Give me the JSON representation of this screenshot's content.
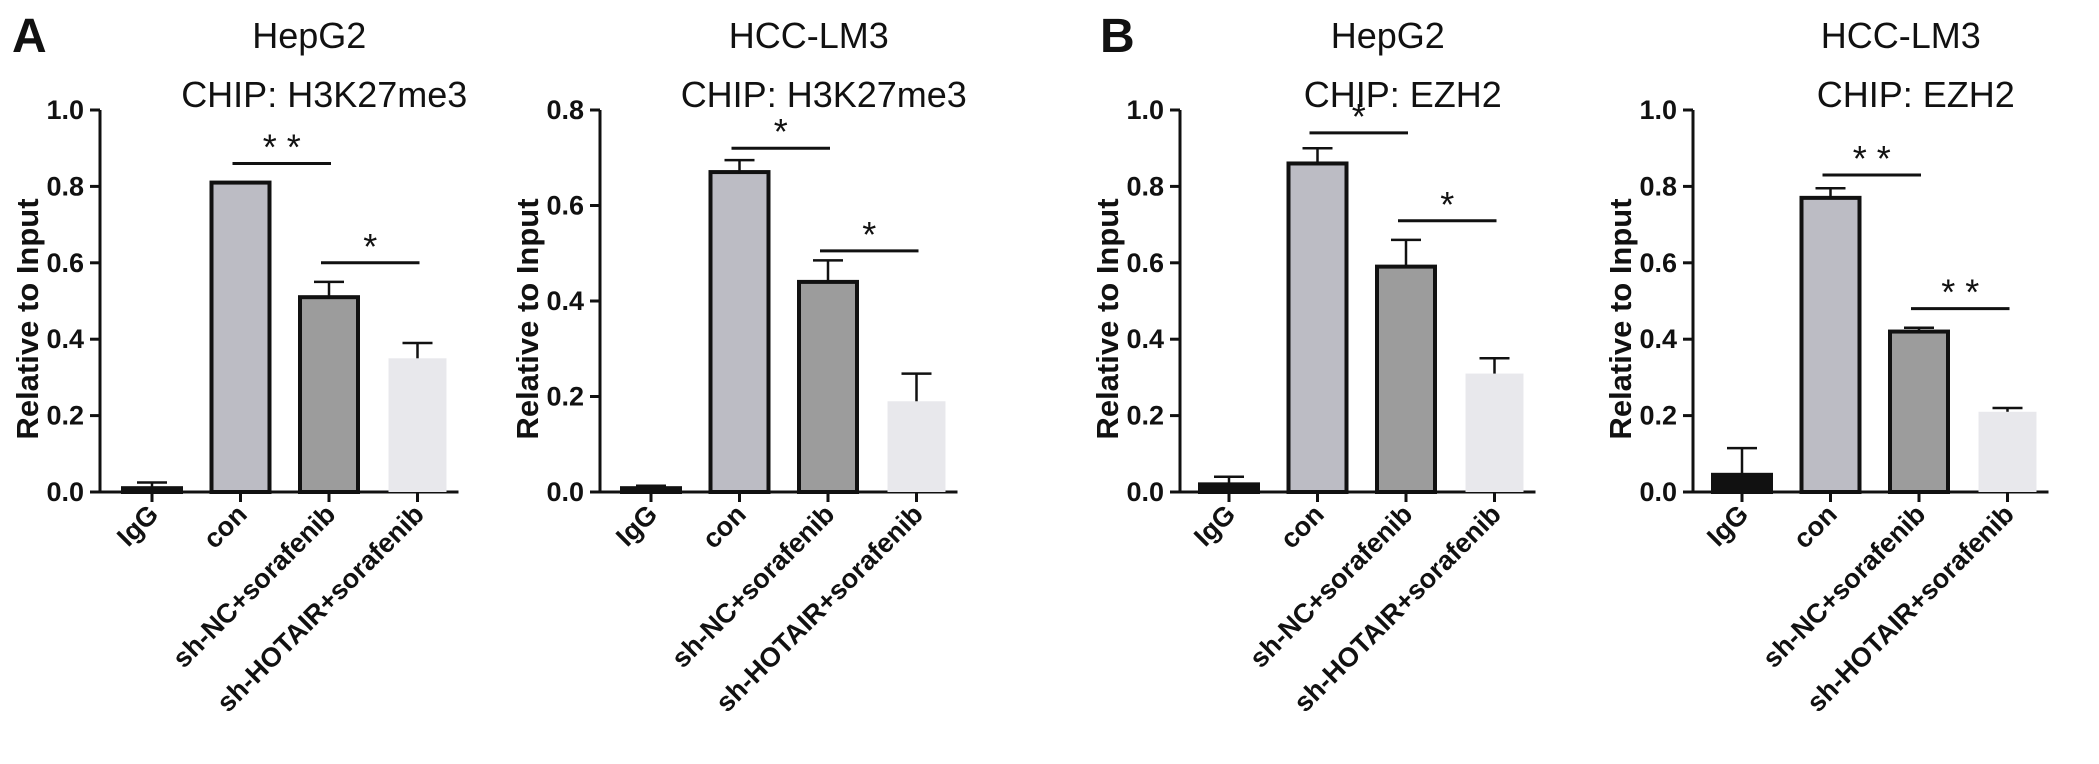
{
  "panels": [
    {
      "label": "A"
    },
    {
      "label": "B"
    }
  ],
  "chart_data": [
    {
      "type": "bar",
      "title": "HepG2",
      "subtitle": "CHIP: H3K27me3",
      "ylabel": "Relative to Input",
      "ylim": [
        0,
        1.0
      ],
      "yticks": [
        "0.0",
        "0.2",
        "0.4",
        "0.6",
        "0.8",
        "1.0"
      ],
      "categories": [
        "IgG",
        "con",
        "sh-NC+sorafenib",
        "sh-HOTAIR+sorafenib"
      ],
      "values": [
        0.01,
        0.81,
        0.51,
        0.35
      ],
      "errors": [
        0.015,
        0.0,
        0.04,
        0.04
      ],
      "colors": [
        "#111111",
        "#bcbcc4",
        "#9c9c9c",
        "#e8e8ec"
      ],
      "significance": [
        {
          "from": 1,
          "to": 2,
          "label": "* *",
          "y": 0.86
        },
        {
          "from": 2,
          "to": 3,
          "label": "*",
          "y": 0.6
        }
      ]
    },
    {
      "type": "bar",
      "title": "HCC-LM3",
      "subtitle": "CHIP: H3K27me3",
      "ylabel": "Relative to Input",
      "ylim": [
        0,
        0.8
      ],
      "yticks": [
        "0.0",
        "0.2",
        "0.4",
        "0.6",
        "0.8"
      ],
      "categories": [
        "IgG",
        "con",
        "sh-NC+sorafenib",
        "sh-HOTAIR+sorafenib"
      ],
      "values": [
        0.008,
        0.67,
        0.44,
        0.19
      ],
      "errors": [
        0.005,
        0.025,
        0.045,
        0.058
      ],
      "colors": [
        "#111111",
        "#bcbcc4",
        "#9c9c9c",
        "#e8e8ec"
      ],
      "significance": [
        {
          "from": 1,
          "to": 2,
          "label": "*",
          "y": 0.72
        },
        {
          "from": 2,
          "to": 3,
          "label": "*",
          "y": 0.505
        }
      ]
    },
    {
      "type": "bar",
      "title": "HepG2",
      "subtitle": "CHIP: EZH2",
      "ylabel": "Relative to Input",
      "ylim": [
        0,
        1.0
      ],
      "yticks": [
        "0.0",
        "0.2",
        "0.4",
        "0.6",
        "0.8",
        "1.0"
      ],
      "categories": [
        "IgG",
        "con",
        "sh-NC+sorafenib",
        "sh-HOTAIR+sorafenib"
      ],
      "values": [
        0.02,
        0.86,
        0.59,
        0.31
      ],
      "errors": [
        0.02,
        0.04,
        0.07,
        0.04
      ],
      "colors": [
        "#111111",
        "#bcbcc4",
        "#9c9c9c",
        "#e8e8ec"
      ],
      "significance": [
        {
          "from": 1,
          "to": 2,
          "label": "*",
          "y": 0.94
        },
        {
          "from": 2,
          "to": 3,
          "label": "*",
          "y": 0.71
        }
      ]
    },
    {
      "type": "bar",
      "title": "HCC-LM3",
      "subtitle": "CHIP: EZH2",
      "ylabel": "Relative to Input",
      "ylim": [
        0,
        1.0
      ],
      "yticks": [
        "0.0",
        "0.2",
        "0.4",
        "0.6",
        "0.8",
        "1.0"
      ],
      "categories": [
        "IgG",
        "con",
        "sh-NC+sorafenib",
        "sh-HOTAIR+sorafenib"
      ],
      "values": [
        0.045,
        0.77,
        0.42,
        0.21
      ],
      "errors": [
        0.07,
        0.025,
        0.01,
        0.01
      ],
      "colors": [
        "#111111",
        "#bcbcc4",
        "#9c9c9c",
        "#e8e8ec"
      ],
      "significance": [
        {
          "from": 1,
          "to": 2,
          "label": "* *",
          "y": 0.83
        },
        {
          "from": 2,
          "to": 3,
          "label": "* *",
          "y": 0.48
        }
      ]
    }
  ]
}
